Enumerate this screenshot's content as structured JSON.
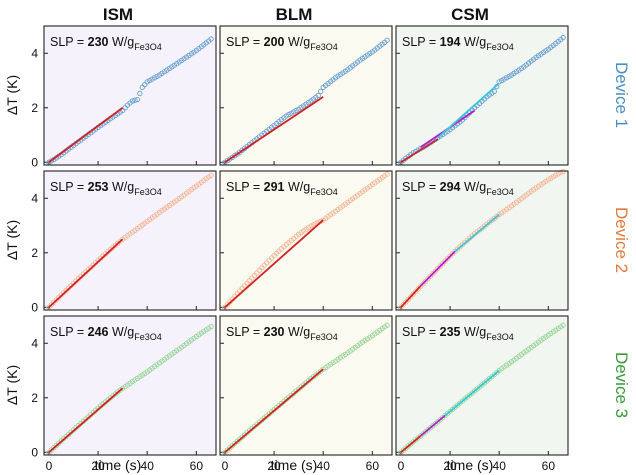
{
  "figure": {
    "columns": [
      "ISM",
      "BLM",
      "CSM"
    ],
    "devices": [
      {
        "label": "Device 1",
        "color": "#4a8fc4"
      },
      {
        "label": "Device 2",
        "color": "#e07b39"
      },
      {
        "label": "Device 3",
        "color": "#3a9a3a"
      }
    ],
    "xlabel": "time (s)",
    "ylabel": "ΔT (K)",
    "slp_prefix": "SLP = ",
    "slp_unit": "W/g",
    "slp_unit_sub": "Fe3O4",
    "panel_bg": {
      "ISM": "#f5f2fb",
      "BLM": "#fbfaf0",
      "CSM": "#f1f6f1"
    },
    "fit_colors": {
      "ISM": [
        "#d42020"
      ],
      "BLM": [
        "#d42020"
      ],
      "CSM": [
        "#d42020",
        "#b51ecf",
        "#36c8d8"
      ]
    }
  },
  "chart_data": [
    {
      "type": "scatter",
      "row": 0,
      "col": 0,
      "slp": "230",
      "xlim": [
        -2,
        68
      ],
      "ylim": [
        -0.1,
        5
      ],
      "xticks": [
        0,
        20,
        40,
        60
      ],
      "yticks": [
        0,
        2,
        4
      ],
      "marker": "#6aa0d0",
      "series": [
        {
          "x": [
            0,
            2,
            5,
            10,
            15,
            20,
            25,
            30,
            32,
            34,
            36,
            38,
            40,
            45,
            50,
            55,
            60,
            65,
            67
          ],
          "y": [
            0,
            0.1,
            0.28,
            0.62,
            0.95,
            1.28,
            1.6,
            1.9,
            2.1,
            2.25,
            2.3,
            2.75,
            2.95,
            3.2,
            3.5,
            3.8,
            4.1,
            4.45,
            4.6
          ]
        }
      ],
      "fits": [
        {
          "x": [
            0,
            30
          ],
          "y": [
            0,
            2.0
          ]
        }
      ]
    },
    {
      "type": "scatter",
      "row": 0,
      "col": 1,
      "slp": "200",
      "xlim": [
        -2,
        68
      ],
      "ylim": [
        -0.1,
        5
      ],
      "xticks": [
        0,
        20,
        40,
        60
      ],
      "yticks": [
        0,
        2,
        4
      ],
      "marker": "#6aa0d0",
      "series": [
        {
          "x": [
            0,
            2,
            5,
            10,
            15,
            20,
            25,
            30,
            35,
            38,
            40,
            45,
            50,
            55,
            60,
            65,
            67
          ],
          "y": [
            0,
            0.12,
            0.3,
            0.65,
            1.0,
            1.35,
            1.7,
            1.95,
            2.25,
            2.45,
            2.75,
            3.1,
            3.4,
            3.75,
            4.05,
            4.4,
            4.55
          ]
        }
      ],
      "fits": [
        {
          "x": [
            0,
            40
          ],
          "y": [
            0,
            2.4
          ]
        }
      ]
    },
    {
      "type": "scatter",
      "row": 0,
      "col": 2,
      "slp": "194",
      "xlim": [
        -2,
        68
      ],
      "ylim": [
        -0.1,
        5
      ],
      "xticks": [
        0,
        20,
        40,
        60
      ],
      "yticks": [
        0,
        2,
        4
      ],
      "marker": "#6aa0d0",
      "series": [
        {
          "x": [
            0,
            2,
            5,
            10,
            15,
            20,
            25,
            30,
            35,
            38,
            40,
            45,
            50,
            55,
            60,
            65,
            67
          ],
          "y": [
            0,
            0.15,
            0.35,
            0.6,
            0.9,
            1.2,
            1.55,
            2.0,
            2.4,
            2.6,
            2.95,
            3.2,
            3.5,
            3.85,
            4.15,
            4.5,
            4.65
          ]
        }
      ],
      "fits": [
        {
          "x": [
            0,
            15
          ],
          "y": [
            0,
            0.85
          ]
        },
        {
          "x": [
            8,
            30
          ],
          "y": [
            0.55,
            1.9
          ]
        },
        {
          "x": [
            15,
            40
          ],
          "y": [
            0.9,
            2.9
          ]
        }
      ]
    },
    {
      "type": "scatter",
      "row": 1,
      "col": 0,
      "slp": "253",
      "xlim": [
        -2,
        68
      ],
      "ylim": [
        -0.1,
        5
      ],
      "xticks": [
        0,
        20,
        40,
        60
      ],
      "yticks": [
        0,
        2,
        4
      ],
      "marker": "#f2b89a",
      "series": [
        {
          "x": [
            0,
            5,
            10,
            15,
            20,
            25,
            30,
            35,
            40,
            45,
            50,
            55,
            60,
            65,
            67
          ],
          "y": [
            0,
            0.45,
            0.88,
            1.3,
            1.72,
            2.12,
            2.5,
            2.82,
            3.15,
            3.48,
            3.8,
            4.12,
            4.45,
            4.78,
            4.9
          ]
        }
      ],
      "fits": [
        {
          "x": [
            0,
            30
          ],
          "y": [
            0,
            2.5
          ]
        }
      ]
    },
    {
      "type": "scatter",
      "row": 1,
      "col": 1,
      "slp": "291",
      "xlim": [
        -2,
        68
      ],
      "ylim": [
        -0.1,
        5
      ],
      "xticks": [
        0,
        20,
        40,
        60
      ],
      "yticks": [
        0,
        2,
        4
      ],
      "marker": "#f2b89a",
      "series": [
        {
          "x": [
            0,
            5,
            10,
            15,
            20,
            25,
            30,
            35,
            40,
            45,
            50,
            55,
            60,
            65,
            67
          ],
          "y": [
            0,
            0.5,
            0.98,
            1.45,
            1.9,
            2.3,
            2.68,
            2.98,
            3.2,
            3.52,
            3.85,
            4.18,
            4.5,
            4.82,
            4.95
          ]
        }
      ],
      "fits": [
        {
          "x": [
            0,
            40
          ],
          "y": [
            0,
            3.2
          ]
        }
      ]
    },
    {
      "type": "scatter",
      "row": 1,
      "col": 2,
      "slp": "294",
      "xlim": [
        -2,
        68
      ],
      "ylim": [
        -0.1,
        5
      ],
      "xticks": [
        0,
        20,
        40,
        60
      ],
      "yticks": [
        0,
        2,
        4
      ],
      "marker": "#f2b89a",
      "series": [
        {
          "x": [
            0,
            5,
            10,
            15,
            20,
            25,
            30,
            35,
            40,
            45,
            50,
            55,
            60,
            65,
            67
          ],
          "y": [
            0,
            0.48,
            0.95,
            1.42,
            1.88,
            2.3,
            2.7,
            3.05,
            3.4,
            3.72,
            4.05,
            4.38,
            4.68,
            4.95,
            5.0
          ]
        }
      ],
      "fits": [
        {
          "x": [
            0,
            8
          ],
          "y": [
            0,
            0.78
          ]
        },
        {
          "x": [
            8,
            22
          ],
          "y": [
            0.78,
            2.05
          ]
        },
        {
          "x": [
            22,
            40
          ],
          "y": [
            2.05,
            3.4
          ]
        }
      ]
    },
    {
      "type": "scatter",
      "row": 2,
      "col": 0,
      "slp": "246",
      "xlim": [
        -2,
        68
      ],
      "ylim": [
        -0.1,
        5
      ],
      "xticks": [
        0,
        20,
        40,
        60
      ],
      "yticks": [
        0,
        2,
        4
      ],
      "marker": "#9cd59c",
      "series": [
        {
          "x": [
            0,
            5,
            10,
            15,
            20,
            25,
            30,
            35,
            40,
            45,
            50,
            55,
            60,
            65,
            67
          ],
          "y": [
            0,
            0.42,
            0.82,
            1.22,
            1.62,
            2.0,
            2.35,
            2.65,
            2.95,
            3.28,
            3.6,
            3.92,
            4.25,
            4.55,
            4.68
          ]
        }
      ],
      "fits": [
        {
          "x": [
            0,
            30
          ],
          "y": [
            0,
            2.35
          ]
        }
      ]
    },
    {
      "type": "scatter",
      "row": 2,
      "col": 1,
      "slp": "230",
      "xlim": [
        -2,
        68
      ],
      "ylim": [
        -0.1,
        5
      ],
      "xticks": [
        0,
        20,
        40,
        60
      ],
      "yticks": [
        0,
        2,
        4
      ],
      "marker": "#9cd59c",
      "series": [
        {
          "x": [
            0,
            5,
            10,
            15,
            20,
            25,
            30,
            35,
            40,
            45,
            50,
            55,
            60,
            65,
            67
          ],
          "y": [
            0,
            0.4,
            0.8,
            1.18,
            1.56,
            1.95,
            2.32,
            2.7,
            3.05,
            3.35,
            3.65,
            3.98,
            4.28,
            4.6,
            4.72
          ]
        }
      ],
      "fits": [
        {
          "x": [
            0,
            40
          ],
          "y": [
            0,
            3.05
          ]
        }
      ]
    },
    {
      "type": "scatter",
      "row": 2,
      "col": 2,
      "slp": "235",
      "xlim": [
        -2,
        68
      ],
      "ylim": [
        -0.1,
        5
      ],
      "xticks": [
        0,
        20,
        40,
        60
      ],
      "yticks": [
        0,
        2,
        4
      ],
      "marker": "#9cd59c",
      "series": [
        {
          "x": [
            0,
            5,
            10,
            15,
            20,
            25,
            30,
            35,
            40,
            45,
            50,
            55,
            60,
            65,
            67
          ],
          "y": [
            0,
            0.38,
            0.75,
            1.12,
            1.5,
            1.88,
            2.25,
            2.62,
            3.0,
            3.32,
            3.65,
            3.98,
            4.3,
            4.6,
            4.72
          ]
        }
      ],
      "fits": [
        {
          "x": [
            0,
            8
          ],
          "y": [
            0,
            0.6
          ]
        },
        {
          "x": [
            8,
            18
          ],
          "y": [
            0.6,
            1.35
          ]
        },
        {
          "x": [
            18,
            40
          ],
          "y": [
            1.35,
            3.0
          ]
        }
      ]
    }
  ]
}
